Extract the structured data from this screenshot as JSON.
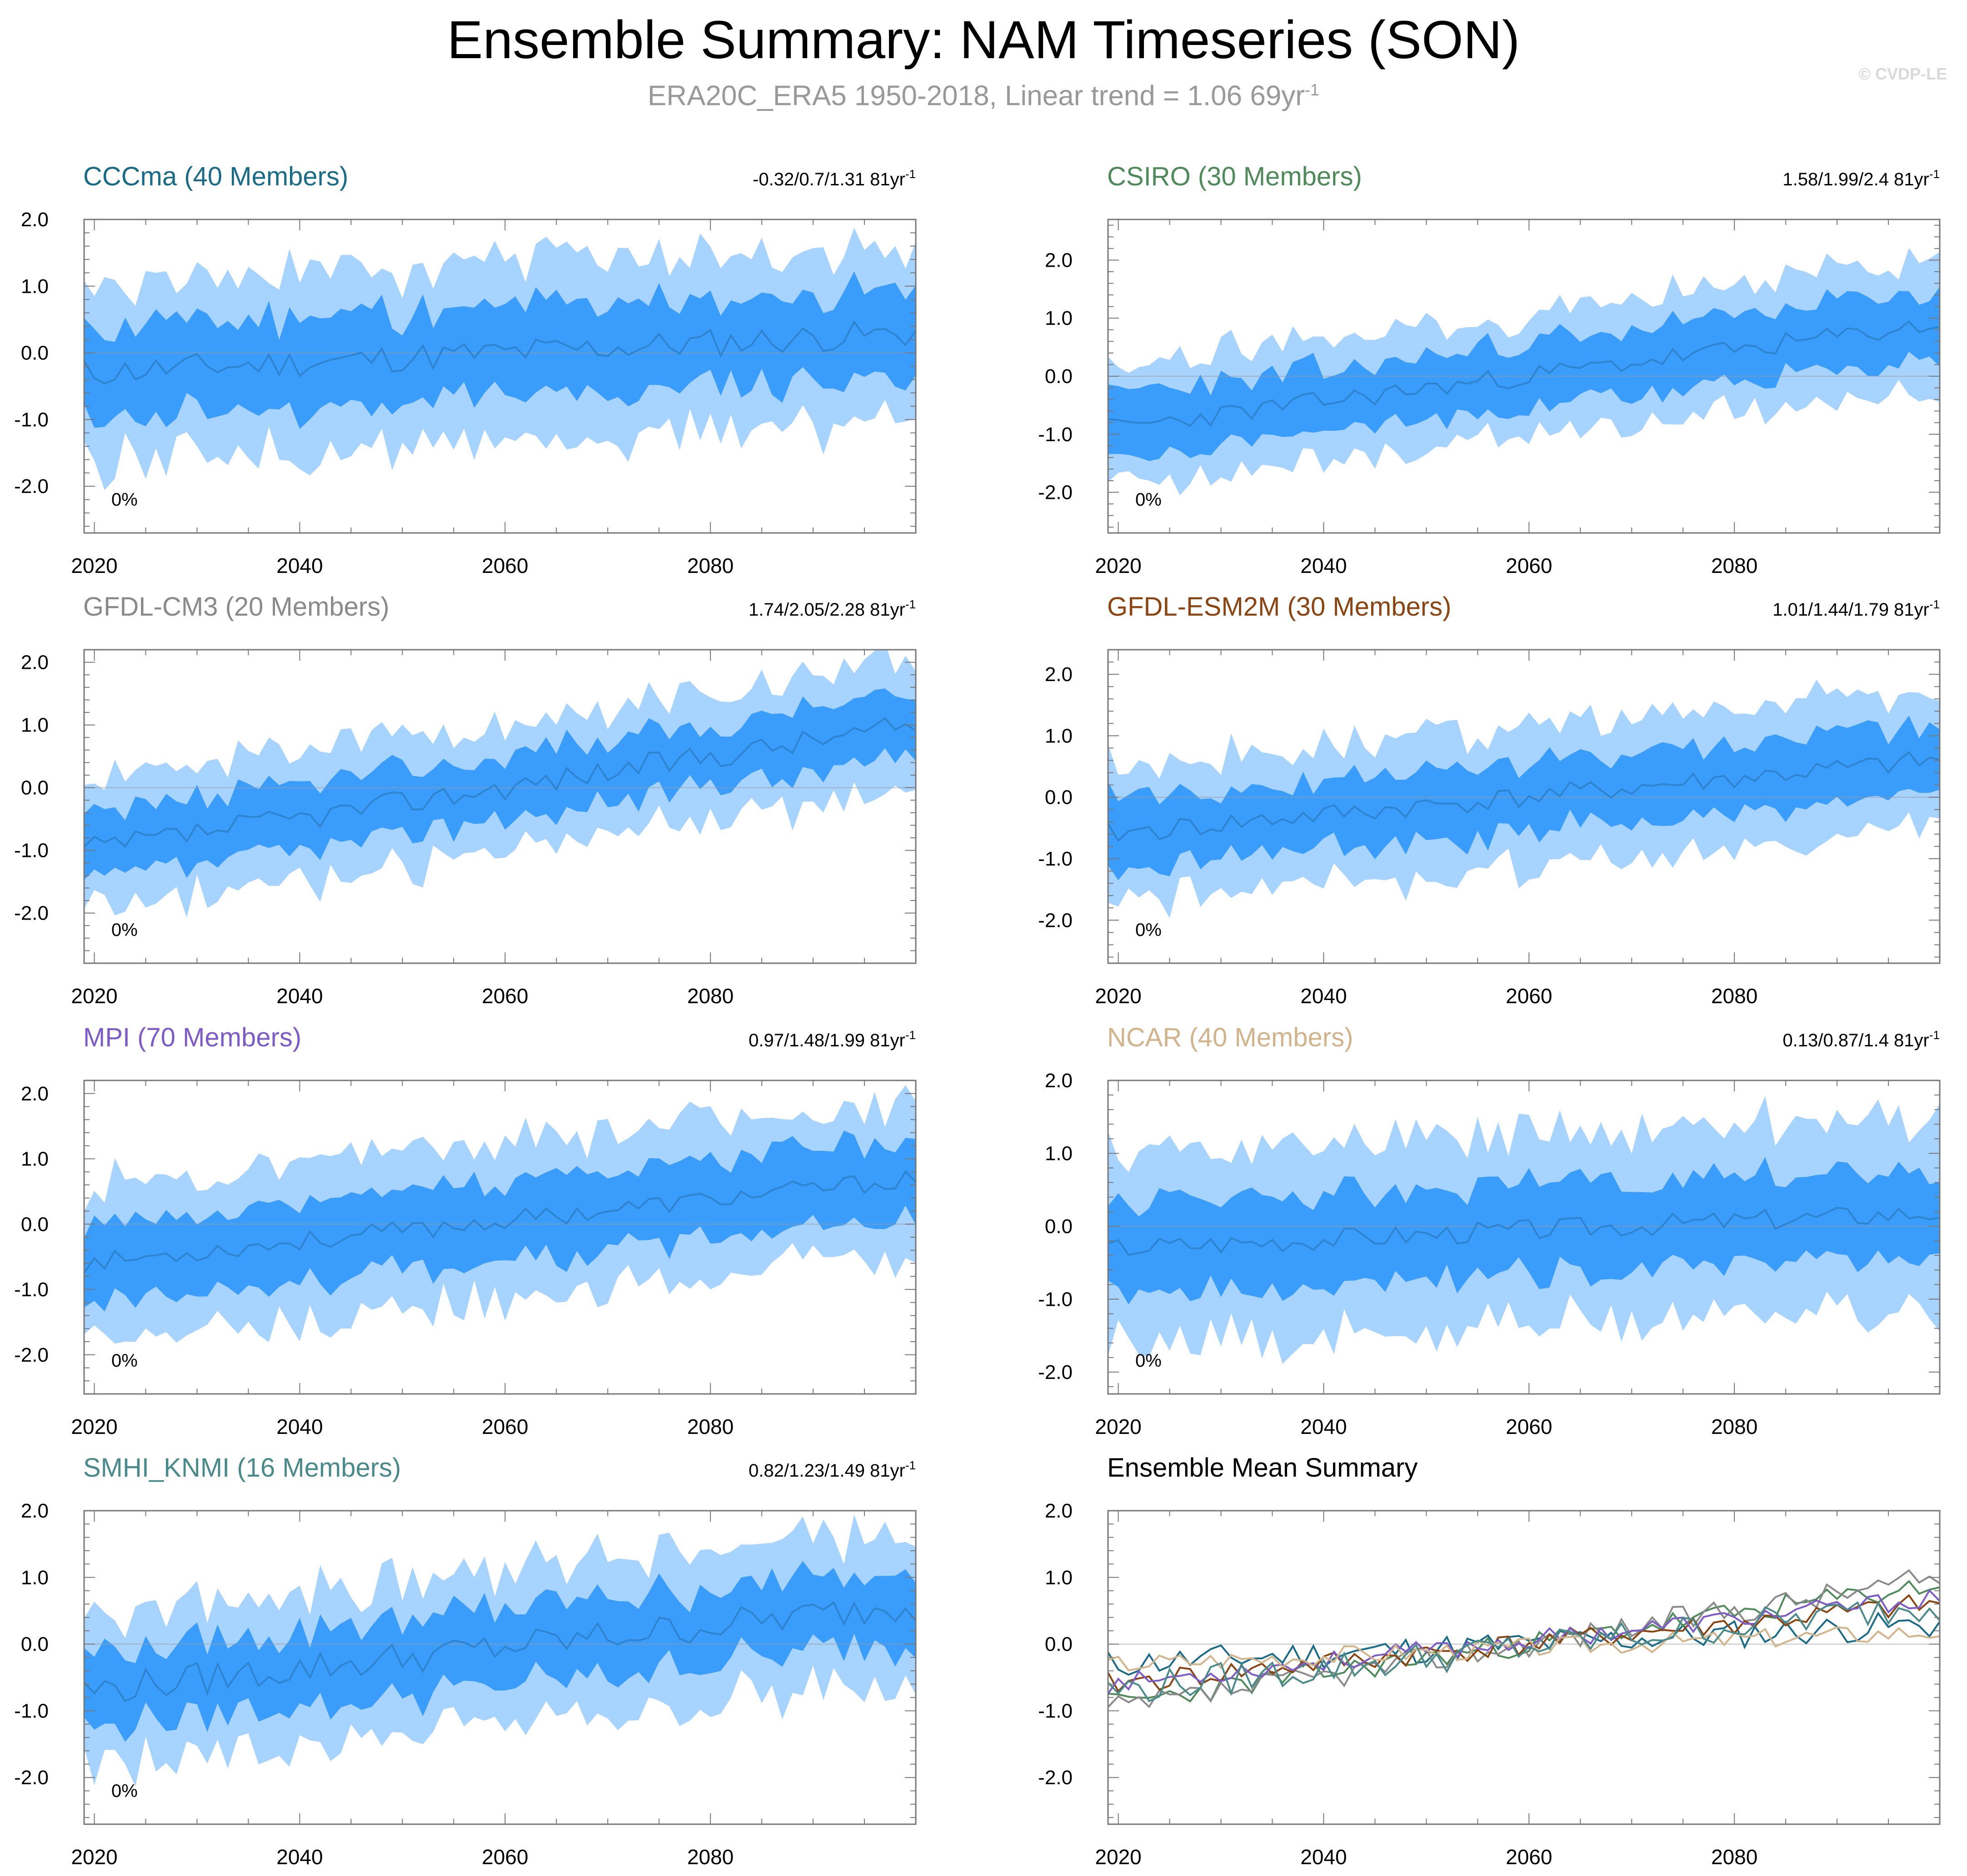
{
  "header": {
    "title": "Ensemble Summary: NAM Timeseries (SON)",
    "subtitle_main": "ERA20C_ERA5 1950-2018, Linear trend = 1.06 69yr",
    "subtitle_sup": "-1",
    "watermark": "© CVDP-LE"
  },
  "colors": {
    "outer_band": "#a6d3ff",
    "inner_band": "#3a9dfc",
    "mean_line": "#2f84cf",
    "zero_line": "#9a9a9a",
    "axis": "#777777"
  },
  "chart_data": [
    {
      "type": "area",
      "panel": "CCCma",
      "title": "CCCma (40 Members)",
      "title_color": "#1a6b87",
      "trend_text": "-0.32/0.7/1.31 81yr",
      "trend_sup": "-1",
      "percent_label": "0%",
      "start": -0.3,
      "end": 0.3,
      "noise": 0.22,
      "seed": 11,
      "ylim": [
        -2.7,
        2.0
      ],
      "yticks": [
        2.0,
        1.0,
        0.0,
        -1.0,
        -2.0
      ],
      "ytick_labels": [
        "2.0",
        "1.0",
        "0.0",
        "-1.0",
        "-2.0"
      ],
      "xlim": [
        2019,
        2100
      ],
      "xticks": [
        2020,
        2040,
        2060,
        2080
      ],
      "xtick_labels": [
        "2020",
        "2040",
        "2060",
        "2080"
      ],
      "inner_half": 0.65,
      "outer_half": 1.3
    },
    {
      "type": "area",
      "panel": "CSIRO",
      "title": "CSIRO (30 Members)",
      "title_color": "#4f8a5a",
      "trend_text": "1.58/1.99/2.4 81yr",
      "trend_sup": "-1",
      "percent_label": "0%",
      "start": -0.9,
      "end": 0.9,
      "noise": 0.18,
      "seed": 23,
      "ylim": [
        -2.7,
        2.7
      ],
      "yticks": [
        2.0,
        1.0,
        0.0,
        -1.0,
        -2.0
      ],
      "ytick_labels": [
        "2.0",
        "1.0",
        "0.0",
        "-1.0",
        "-2.0"
      ],
      "xlim": [
        2019,
        2100
      ],
      "xticks": [
        2020,
        2040,
        2060,
        2080
      ],
      "xtick_labels": [
        "2020",
        "2040",
        "2060",
        "2080"
      ],
      "inner_half": 0.55,
      "outer_half": 1.05
    },
    {
      "type": "area",
      "panel": "GFDL-CM3",
      "title": "GFDL-CM3 (20 Members)",
      "title_color": "#8a8a8a",
      "trend_text": "1.74/2.05/2.28 81yr",
      "trend_sup": "-1",
      "percent_label": "0%",
      "start": -1.0,
      "end": 1.0,
      "noise": 0.2,
      "seed": 37,
      "ylim": [
        -2.8,
        2.2
      ],
      "yticks": [
        2.0,
        1.0,
        0.0,
        -1.0,
        -2.0
      ],
      "ytick_labels": [
        "2.0",
        "1.0",
        "0.0",
        "-1.0",
        "-2.0"
      ],
      "xlim": [
        2019,
        2100
      ],
      "xticks": [
        2020,
        2040,
        2060,
        2080
      ],
      "xtick_labels": [
        "2020",
        "2040",
        "2060",
        "2080"
      ],
      "inner_half": 0.5,
      "outer_half": 1.0
    },
    {
      "type": "area",
      "panel": "GFDL-ESM2M",
      "title": "GFDL-ESM2M (30 Members)",
      "title_color": "#8b4513",
      "trend_text": "1.01/1.44/1.79 81yr",
      "trend_sup": "-1",
      "percent_label": "0%",
      "start": -0.6,
      "end": 0.6,
      "noise": 0.18,
      "seed": 41,
      "ylim": [
        -2.7,
        2.4
      ],
      "yticks": [
        2.0,
        1.0,
        0.0,
        -1.0,
        -2.0
      ],
      "ytick_labels": [
        "2.0",
        "1.0",
        "0.0",
        "-1.0",
        "-2.0"
      ],
      "xlim": [
        2019,
        2100
      ],
      "xticks": [
        2020,
        2040,
        2060,
        2080
      ],
      "xtick_labels": [
        "2020",
        "2040",
        "2060",
        "2080"
      ],
      "inner_half": 0.55,
      "outer_half": 1.1
    },
    {
      "type": "area",
      "panel": "MPI",
      "title": "MPI (70 Members)",
      "title_color": "#7d5cc8",
      "trend_text": "0.97/1.48/1.99 81yr",
      "trend_sup": "-1",
      "percent_label": "0%",
      "start": -0.6,
      "end": 0.7,
      "noise": 0.15,
      "seed": 53,
      "ylim": [
        -2.6,
        2.2
      ],
      "yticks": [
        2.0,
        1.0,
        0.0,
        -1.0,
        -2.0
      ],
      "ytick_labels": [
        "2.0",
        "1.0",
        "0.0",
        "-1.0",
        "-2.0"
      ],
      "xlim": [
        2019,
        2100
      ],
      "xticks": [
        2020,
        2040,
        2060,
        2080
      ],
      "xtick_labels": [
        "2020",
        "2040",
        "2060",
        "2080"
      ],
      "inner_half": 0.6,
      "outer_half": 1.15
    },
    {
      "type": "area",
      "panel": "NCAR",
      "title": "NCAR (40 Members)",
      "title_color": "#d2b48c",
      "trend_text": "0.13/0.87/1.4 81yr",
      "trend_sup": "-1",
      "percent_label": "0%",
      "start": -0.3,
      "end": 0.2,
      "noise": 0.15,
      "seed": 67,
      "ylim": [
        -2.3,
        2.0
      ],
      "yticks": [
        2.0,
        1.0,
        0.0,
        -1.0,
        -2.0
      ],
      "ytick_labels": [
        "2.0",
        "1.0",
        "0.0",
        "-1.0",
        "-2.0"
      ],
      "xlim": [
        2019,
        2100
      ],
      "xticks": [
        2020,
        2040,
        2060,
        2080
      ],
      "xtick_labels": [
        "2020",
        "2040",
        "2060",
        "2080"
      ],
      "inner_half": 0.6,
      "outer_half": 1.25
    },
    {
      "type": "area",
      "panel": "SMHI_KNMI",
      "title": "SMHI_KNMI (16 Members)",
      "title_color": "#4b8a8a",
      "trend_text": "0.82/1.23/1.49 81yr",
      "trend_sup": "-1",
      "percent_label": "0%",
      "start": -0.7,
      "end": 0.6,
      "noise": 0.25,
      "seed": 79,
      "ylim": [
        -2.7,
        2.0
      ],
      "yticks": [
        2.0,
        1.0,
        0.0,
        -1.0,
        -2.0
      ],
      "ytick_labels": [
        "2.0",
        "1.0",
        "0.0",
        "-1.0",
        "-2.0"
      ],
      "xlim": [
        2019,
        2100
      ],
      "xticks": [
        2020,
        2040,
        2060,
        2080
      ],
      "xtick_labels": [
        "2020",
        "2040",
        "2060",
        "2080"
      ],
      "inner_half": 0.55,
      "outer_half": 1.1
    },
    {
      "type": "line",
      "panel": "Ensemble Mean Summary",
      "title": "Ensemble Mean Summary",
      "title_color": "#000000",
      "trend_text": "",
      "trend_sup": "",
      "percent_label": "",
      "ylim": [
        -2.7,
        2.0
      ],
      "yticks": [
        2.0,
        1.0,
        0.0,
        -1.0,
        -2.0
      ],
      "ytick_labels": [
        "2.0",
        "1.0",
        "0.0",
        "-1.0",
        "-2.0"
      ],
      "xlim": [
        2019,
        2100
      ],
      "xticks": [
        2020,
        2040,
        2060,
        2080
      ],
      "xtick_labels": [
        "2020",
        "2040",
        "2060",
        "2080"
      ],
      "series": [
        {
          "name": "CCCma",
          "color": "#1a6b87",
          "start": -0.3,
          "end": 0.3,
          "noise": 0.22,
          "seed": 11
        },
        {
          "name": "CSIRO",
          "color": "#4f8a5a",
          "start": -0.9,
          "end": 0.9,
          "noise": 0.18,
          "seed": 23
        },
        {
          "name": "GFDL-CM3",
          "color": "#8a8a8a",
          "start": -1.0,
          "end": 1.0,
          "noise": 0.2,
          "seed": 37
        },
        {
          "name": "GFDL-ESM2M",
          "color": "#8b4513",
          "start": -0.6,
          "end": 0.6,
          "noise": 0.18,
          "seed": 41
        },
        {
          "name": "MPI",
          "color": "#7d5cc8",
          "start": -0.6,
          "end": 0.7,
          "noise": 0.15,
          "seed": 53
        },
        {
          "name": "NCAR",
          "color": "#d2b48c",
          "start": -0.3,
          "end": 0.2,
          "noise": 0.15,
          "seed": 67
        },
        {
          "name": "SMHI_KNMI",
          "color": "#4b8a8a",
          "start": -0.7,
          "end": 0.6,
          "noise": 0.25,
          "seed": 79
        }
      ]
    }
  ]
}
